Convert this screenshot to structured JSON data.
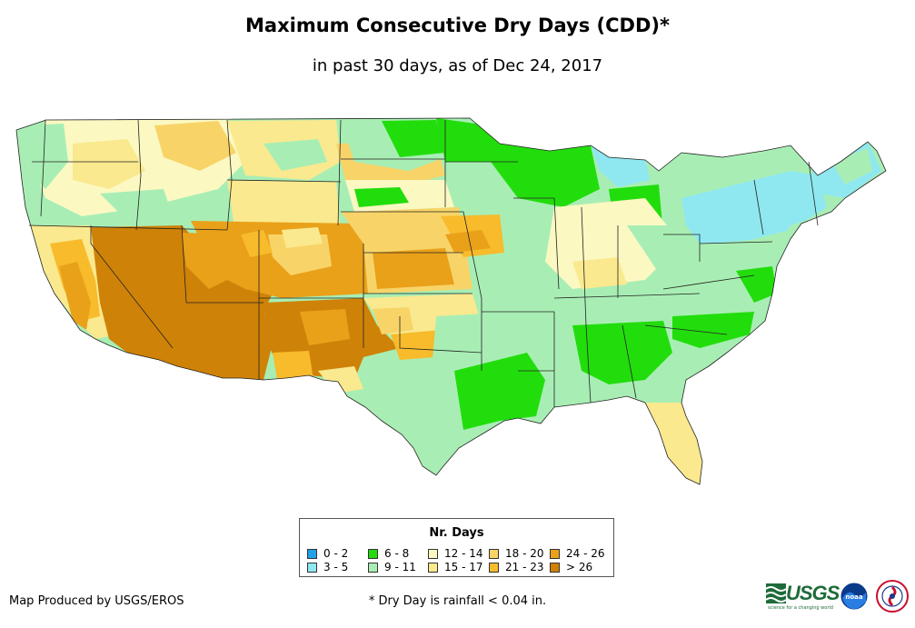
{
  "title": "Maximum Consecutive Dry Days (CDD)*",
  "subtitle": "in past 30 days, as of Dec 24, 2017",
  "legend": {
    "title": "Nr. Days",
    "items": [
      {
        "label": "0 - 2",
        "color": "#1fa2e8"
      },
      {
        "label": "3 - 5",
        "color": "#8fe8f0"
      },
      {
        "label": "6 - 8",
        "color": "#22dd0c"
      },
      {
        "label": "9 - 11",
        "color": "#a8eeb4"
      },
      {
        "label": "12 - 14",
        "color": "#fbf8c2"
      },
      {
        "label": "15 - 17",
        "color": "#fae98e"
      },
      {
        "label": "18 - 20",
        "color": "#f8d468"
      },
      {
        "label": "21 - 23",
        "color": "#f7bb2c"
      },
      {
        "label": "24 - 26",
        "color": "#e9a11a"
      },
      {
        "label": "> 26",
        "color": "#cf8208"
      }
    ]
  },
  "credit": "Map Produced by USGS/EROS",
  "footnote": "* Dry Day is rainfall < 0.04 in.",
  "logos": {
    "usgs": "USGS",
    "usgs_tagline": "science for a changing world",
    "noaa": "noaa",
    "nws": "NATIONAL WEATHER SERVICE"
  }
}
